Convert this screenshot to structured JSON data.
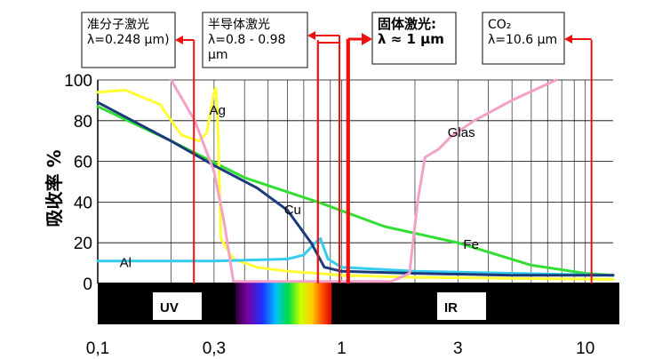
{
  "chart_data": {
    "type": "line",
    "xscale": "log",
    "xlim": [
      0.1,
      13
    ],
    "ylim": [
      0,
      100
    ],
    "ylabel": "吸收率 %",
    "xticks": [
      {
        "value": 0.1,
        "label": "0,1"
      },
      {
        "value": 0.3,
        "label": "0,3"
      },
      {
        "value": 1,
        "label": "1"
      },
      {
        "value": 3,
        "label": "3"
      },
      {
        "value": 10,
        "label": "10"
      }
    ],
    "yticks": [
      {
        "value": 0,
        "label": "0"
      },
      {
        "value": 20,
        "label": "20"
      },
      {
        "value": 40,
        "label": "40"
      },
      {
        "value": 60,
        "label": "60"
      },
      {
        "value": 80,
        "label": "80"
      },
      {
        "value": 100,
        "label": "100"
      }
    ],
    "grid": true,
    "series": [
      {
        "name": "Ag",
        "color": "#ffff33",
        "x": [
          0.1,
          0.13,
          0.18,
          0.22,
          0.26,
          0.28,
          0.3,
          0.305,
          0.31,
          0.32,
          0.36,
          0.45,
          0.6,
          0.8,
          1.0,
          2,
          5,
          13
        ],
        "y": [
          94,
          95,
          88,
          73,
          70,
          74,
          94,
          96,
          84,
          22,
          12,
          8,
          6,
          5,
          4,
          3,
          2.5,
          2
        ]
      },
      {
        "name": "Cu",
        "color": "#1a3a7a",
        "x": [
          0.1,
          0.2,
          0.3,
          0.45,
          0.6,
          0.75,
          0.85,
          1.0,
          2,
          5,
          13
        ],
        "y": [
          89,
          70,
          58,
          47,
          36,
          20,
          8,
          6,
          5,
          4,
          4
        ]
      },
      {
        "name": "Fe",
        "color": "#33dd33",
        "x": [
          0.1,
          0.2,
          0.4,
          0.8,
          1.5,
          3,
          6,
          10,
          13
        ],
        "y": [
          87,
          70,
          52,
          40,
          28,
          20,
          9,
          5,
          4
        ]
      },
      {
        "name": "Al",
        "color": "#33ccee",
        "x": [
          0.1,
          0.3,
          0.6,
          0.7,
          0.78,
          0.82,
          0.88,
          1.0,
          2,
          13
        ],
        "y": [
          11,
          11,
          12,
          14,
          20,
          22,
          12,
          8,
          6,
          4
        ]
      },
      {
        "name": "Glas",
        "color": "#f4a0c8",
        "x": [
          0.2,
          0.25,
          0.3,
          0.33,
          0.36,
          0.6,
          1.0,
          1.6,
          1.9,
          2.05,
          2.2,
          2.5,
          2.8,
          3.5,
          5,
          7.6
        ],
        "y": [
          100,
          80,
          55,
          30,
          1,
          1,
          1,
          1,
          5,
          40,
          62,
          66,
          72,
          80,
          90,
          100
        ]
      }
    ],
    "series_labels": [
      {
        "series": "Ag",
        "text": "Ag",
        "x": 0.31,
        "y": 83
      },
      {
        "series": "Cu",
        "text": "Cu",
        "x": 0.63,
        "y": 34
      },
      {
        "series": "Fe",
        "text": "Fe",
        "x": 3.4,
        "y": 17
      },
      {
        "series": "Al",
        "text": "Al",
        "x": 0.13,
        "y": 8
      },
      {
        "series": "Glas",
        "text": "Glas",
        "x": 3.1,
        "y": 72
      }
    ],
    "laser_lines": [
      {
        "wavelength": 0.248,
        "color": "#ee1111"
      },
      {
        "wavelength": 0.8,
        "color": "#ee1111"
      },
      {
        "wavelength": 0.98,
        "color": "#ee1111"
      },
      {
        "wavelength": 1.064,
        "color": "#ee1111"
      },
      {
        "wavelength": 10.6,
        "color": "#ee1111"
      }
    ],
    "annotations": [
      {
        "name": "excimer",
        "lines": [
          "准分子激光",
          "λ=0.248 μm)"
        ],
        "bold": false
      },
      {
        "name": "diode",
        "lines": [
          "半导体激光",
          "λ=0.8 - 0.98",
          "μm"
        ],
        "bold": false
      },
      {
        "name": "solid",
        "lines": [
          "固体激光:",
          "λ ≈ 1 μm"
        ],
        "bold": true
      },
      {
        "name": "co2",
        "lines": [
          "CO₂",
          "λ=10.6 μm"
        ],
        "bold": false
      }
    ],
    "bands": [
      {
        "label": "UV"
      },
      {
        "label": "IR"
      }
    ]
  }
}
